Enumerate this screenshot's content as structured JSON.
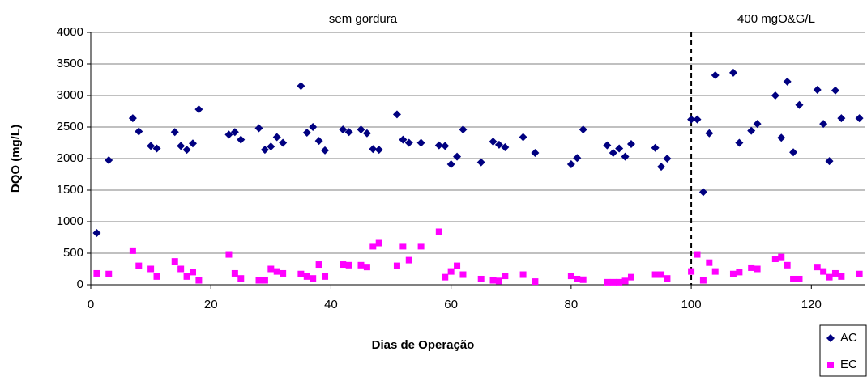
{
  "chart_data": {
    "type": "scatter",
    "x_label": "Dias de Operação",
    "y_label": "DQO (mg/L)",
    "xlim": [
      0,
      129
    ],
    "ylim": [
      0,
      4000
    ],
    "xticks": [
      0,
      20,
      40,
      60,
      80,
      100,
      120
    ],
    "yticks": [
      0,
      500,
      1000,
      1500,
      2000,
      2500,
      3000,
      3500,
      4000
    ],
    "grid": true,
    "legend": "bottom-right",
    "divider_x": 100,
    "annotations": [
      "sem gordura",
      "400 mgO&G/L"
    ],
    "series": [
      {
        "name": "AC",
        "color": "#000080",
        "marker": "diamond",
        "x": [
          1,
          3,
          7,
          8,
          10,
          11,
          14,
          15,
          16,
          17,
          18,
          23,
          24,
          25,
          28,
          29,
          30,
          31,
          32,
          35,
          36,
          37,
          38,
          39,
          42,
          43,
          45,
          46,
          47,
          48,
          51,
          52,
          53,
          55,
          58,
          59,
          60,
          61,
          62,
          65,
          67,
          68,
          69,
          72,
          74,
          80,
          81,
          82,
          86,
          87,
          88,
          89,
          90,
          94,
          95,
          96,
          100,
          101,
          102,
          103,
          104,
          107,
          108,
          110,
          111,
          114,
          115,
          116,
          117,
          118,
          121,
          122,
          123,
          124,
          125,
          128
        ],
        "values": [
          820,
          1975,
          2640,
          2430,
          2200,
          2160,
          2420,
          2200,
          2140,
          2240,
          2780,
          2380,
          2420,
          2300,
          2480,
          2140,
          2190,
          2340,
          2250,
          3150,
          2410,
          2500,
          2280,
          2130,
          2460,
          2420,
          2460,
          2400,
          2150,
          2140,
          2700,
          2300,
          2250,
          2250,
          2210,
          2200,
          1910,
          2030,
          2460,
          1940,
          2270,
          2220,
          2180,
          2340,
          2090,
          1910,
          2010,
          2460,
          2210,
          2090,
          2160,
          2030,
          2230,
          2170,
          1870,
          2000,
          2620,
          2620,
          1470,
          2400,
          3320,
          3360,
          2250,
          2440,
          2550,
          3000,
          2330,
          3220,
          2100,
          2850,
          3090,
          2550,
          1960,
          3080,
          2640,
          2640
        ]
      },
      {
        "name": "EC",
        "color": "#ff00ff",
        "marker": "square",
        "x": [
          1,
          3,
          7,
          8,
          10,
          11,
          14,
          15,
          16,
          17,
          18,
          23,
          24,
          25,
          28,
          29,
          30,
          31,
          32,
          35,
          36,
          37,
          38,
          39,
          42,
          43,
          45,
          46,
          47,
          48,
          51,
          52,
          53,
          55,
          58,
          59,
          60,
          61,
          62,
          65,
          67,
          68,
          69,
          72,
          74,
          80,
          81,
          82,
          86,
          87,
          88,
          89,
          90,
          94,
          95,
          96,
          100,
          101,
          102,
          103,
          104,
          107,
          108,
          110,
          111,
          114,
          115,
          116,
          117,
          118,
          121,
          122,
          123,
          124,
          125,
          128
        ],
        "values": [
          180,
          170,
          540,
          300,
          250,
          130,
          370,
          250,
          130,
          200,
          70,
          480,
          180,
          100,
          70,
          70,
          250,
          210,
          180,
          170,
          130,
          100,
          320,
          130,
          320,
          310,
          310,
          280,
          610,
          660,
          300,
          610,
          390,
          610,
          840,
          120,
          210,
          300,
          160,
          90,
          70,
          60,
          140,
          160,
          50,
          140,
          90,
          80,
          40,
          40,
          40,
          60,
          120,
          160,
          160,
          100,
          210,
          480,
          70,
          350,
          210,
          170,
          200,
          270,
          250,
          410,
          440,
          310,
          90,
          90,
          280,
          210,
          120,
          180,
          130,
          170
        ]
      }
    ]
  }
}
